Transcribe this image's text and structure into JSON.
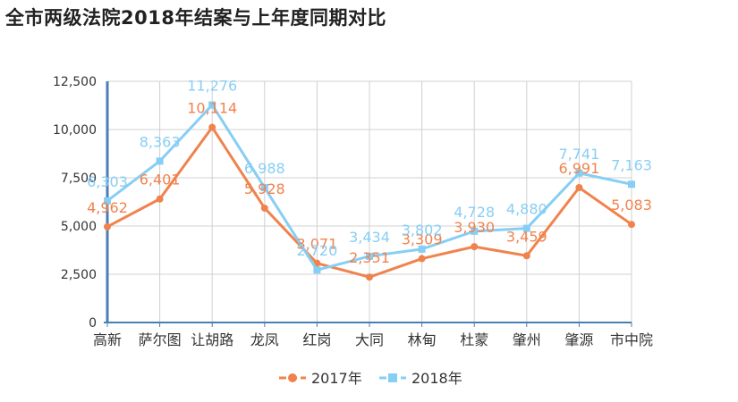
{
  "page": {
    "title": "全市两级法院2018年结案与上年度同期对比"
  },
  "chart_data": {
    "type": "line",
    "title": "全市两级法院2018年结案与上年度同期对比",
    "xlabel": "",
    "ylabel": "",
    "ylim": [
      0,
      12500
    ],
    "yticks": [
      0,
      2500,
      5000,
      7500,
      10000,
      12500
    ],
    "ytick_labels": [
      "0",
      "2,500",
      "5,000",
      "7,500",
      "10,000",
      "12,500"
    ],
    "grid": true,
    "legend_position": "bottom",
    "categories": [
      "高新",
      "萨尔图",
      "让胡路",
      "龙凤",
      "红岗",
      "大同",
      "林甸",
      "杜蒙",
      "肇州",
      "肇源",
      "市中院"
    ],
    "series": [
      {
        "name": "2017年",
        "color": "#f0834d",
        "marker": "circle",
        "values": [
          4962,
          6401,
          10114,
          5928,
          3071,
          2351,
          3309,
          3930,
          3459,
          6991,
          5083
        ],
        "labels": [
          "4,962",
          "6,401",
          "10,114",
          "5,928",
          "3,071",
          "2,351",
          "3,309",
          "3,930",
          "3,459",
          "6,991",
          "5,083"
        ]
      },
      {
        "name": "2018年",
        "color": "#87cef5",
        "marker": "square",
        "values": [
          6303,
          8363,
          11276,
          6988,
          2720,
          3434,
          3802,
          4728,
          4880,
          7741,
          7163
        ],
        "labels": [
          "6,303",
          "8,363",
          "11,276",
          "6,988",
          "2,720",
          "3,434",
          "3,802",
          "4,728",
          "4,880",
          "7,741",
          "7,163"
        ]
      }
    ]
  }
}
